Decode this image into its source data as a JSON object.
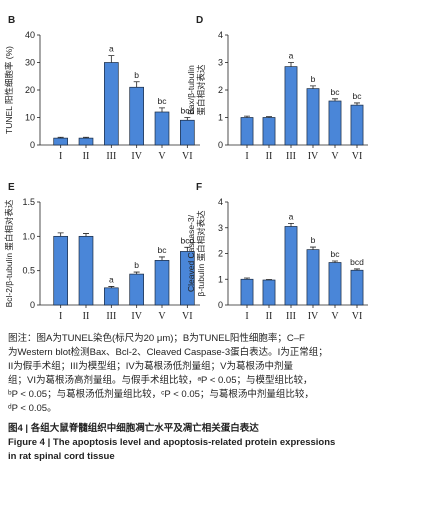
{
  "chart_data": [
    {
      "type": "bar",
      "panel": "B",
      "ylabel": [
        "TUNEL 阳性细胞率 (%)"
      ],
      "categories": [
        "I",
        "II",
        "III",
        "IV",
        "V",
        "VI"
      ],
      "values": [
        2.5,
        2.5,
        30,
        21,
        12,
        9
      ],
      "errors": [
        0.3,
        0.3,
        2.5,
        2,
        1.5,
        1
      ],
      "annotations": [
        null,
        null,
        "a",
        "b",
        "bc",
        "bcd"
      ],
      "color": "#4a86d8",
      "ylim": [
        0,
        40
      ],
      "yticks": [
        0,
        10,
        20,
        30,
        40
      ]
    },
    {
      "type": "bar",
      "panel": "D",
      "ylabel": [
        "Bax/β-tubulin",
        "蛋白相对表达"
      ],
      "categories": [
        "I",
        "II",
        "III",
        "IV",
        "V",
        "VI"
      ],
      "values": [
        1.0,
        1.0,
        2.85,
        2.05,
        1.6,
        1.45
      ],
      "errors": [
        0.05,
        0.03,
        0.15,
        0.1,
        0.08,
        0.08
      ],
      "annotations": [
        null,
        null,
        "a",
        "b",
        "bc",
        "bc"
      ],
      "color": "#4a86d8",
      "ylim": [
        0,
        4
      ],
      "yticks": [
        0,
        1,
        2,
        3,
        4
      ]
    },
    {
      "type": "bar",
      "panel": "E",
      "ylabel": [
        "Bcl-2/β-tubulin 蛋白相对表达"
      ],
      "categories": [
        "I",
        "II",
        "III",
        "IV",
        "V",
        "VI"
      ],
      "values": [
        1.0,
        1.0,
        0.25,
        0.45,
        0.65,
        0.78
      ],
      "errors": [
        0.05,
        0.04,
        0.02,
        0.03,
        0.05,
        0.06
      ],
      "annotations": [
        null,
        null,
        "a",
        "b",
        "bc",
        "bcd"
      ],
      "color": "#4a86d8",
      "ylim": [
        0,
        1.5
      ],
      "yticks": [
        0,
        0.5,
        {
          "value": 1,
          "label": "1.0"
        },
        1.5
      ]
    },
    {
      "type": "bar",
      "panel": "F",
      "ylabel": [
        "Cleaved Caspase-3/",
        "β-tubulin 蛋白相对表达"
      ],
      "categories": [
        "I",
        "II",
        "III",
        "IV",
        "V",
        "VI"
      ],
      "values": [
        1.0,
        0.97,
        3.05,
        2.15,
        1.65,
        1.35
      ],
      "errors": [
        0.05,
        0.02,
        0.12,
        0.1,
        0.06,
        0.05
      ],
      "annotations": [
        null,
        null,
        "a",
        "b",
        "bc",
        "bcd"
      ],
      "color": "#4a86d8",
      "ylim": [
        0,
        4
      ],
      "yticks": [
        0,
        1,
        2,
        3,
        4
      ]
    }
  ],
  "caption": {
    "notes": [
      "图注：图A为TUNEL染色(标尺为20 μm)；B为TUNEL阳性细胞率；C–F",
      "为Western blot检测Bax、Bcl-2、Cleaved Caspase-3蛋白表达。I为正常组；",
      "II为假手术组；III为模型组；IV为葛根汤低剂量组；V为葛根汤中剂量",
      "组；VI为葛根汤高剂量组。与假手术组比较，ᵃP < 0.05；与模型组比较，",
      "ᵇP < 0.05；与葛根汤低剂量组比较，ᶜP < 0.05；与葛根汤中剂量组比较，",
      "ᵈP < 0.05。"
    ],
    "title_cn": "图4 | 各组大鼠脊髓组织中细胞凋亡水平及凋亡相关蛋白表达",
    "title_en": [
      "Figure 4 | The apoptosis level and apoptosis-related protein expressions",
      "in rat spinal cord tissue"
    ]
  }
}
